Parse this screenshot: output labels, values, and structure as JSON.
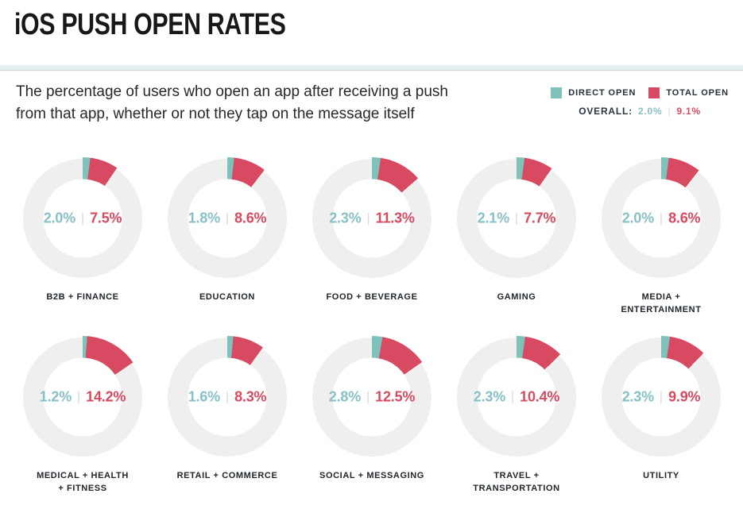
{
  "header": {
    "title": "iOS PUSH OPEN RATES",
    "subtitle": "The percentage of users who open an app after receiving a push\nfrom that app, whether or not they tap on the message itself"
  },
  "legend": {
    "direct_label": "DIRECT OPEN",
    "total_label": "TOTAL OPEN",
    "overall_label": "OVERALL:",
    "overall_direct": "2.0%",
    "overall_total": "9.1%",
    "separator": "|"
  },
  "chart_data": {
    "type": "donut",
    "title": "iOS PUSH OPEN RATES",
    "subtitle": "The percentage of users who open an app after receiving a push from that app, whether or not they tap on the message itself",
    "unit": "%",
    "layout": {
      "rows": 2,
      "cols": 5,
      "legend_position": "top-right"
    },
    "value_separator": "|",
    "categories": [
      "B2B + FINANCE",
      "EDUCATION",
      "FOOD + BEVERAGE",
      "GAMING",
      "MEDIA +\nENTERTAINMENT",
      "MEDICAL + HEALTH\n+ FITNESS",
      "RETAIL + COMMERCE",
      "SOCIAL + MESSAGING",
      "TRAVEL +\nTRANSPORTATION",
      "UTILITY"
    ],
    "series": [
      {
        "name": "DIRECT OPEN",
        "color": "#7ec2bb",
        "values": [
          2.0,
          1.8,
          2.3,
          2.1,
          2.0,
          1.2,
          1.6,
          2.8,
          2.3,
          2.3
        ]
      },
      {
        "name": "TOTAL OPEN",
        "color": "#d84a61",
        "values": [
          7.5,
          8.6,
          11.3,
          7.7,
          8.6,
          14.2,
          8.3,
          12.5,
          10.4,
          9.9
        ]
      }
    ],
    "overall": {
      "direct": 2.0,
      "total": 9.1
    },
    "colors": {
      "ring_background": "#f0eff0",
      "direct_text": "#87c0c6",
      "total_text": "#d94a5f",
      "separator_gray": "#d9d9d9",
      "divider_band": "#e3f0f2"
    }
  }
}
